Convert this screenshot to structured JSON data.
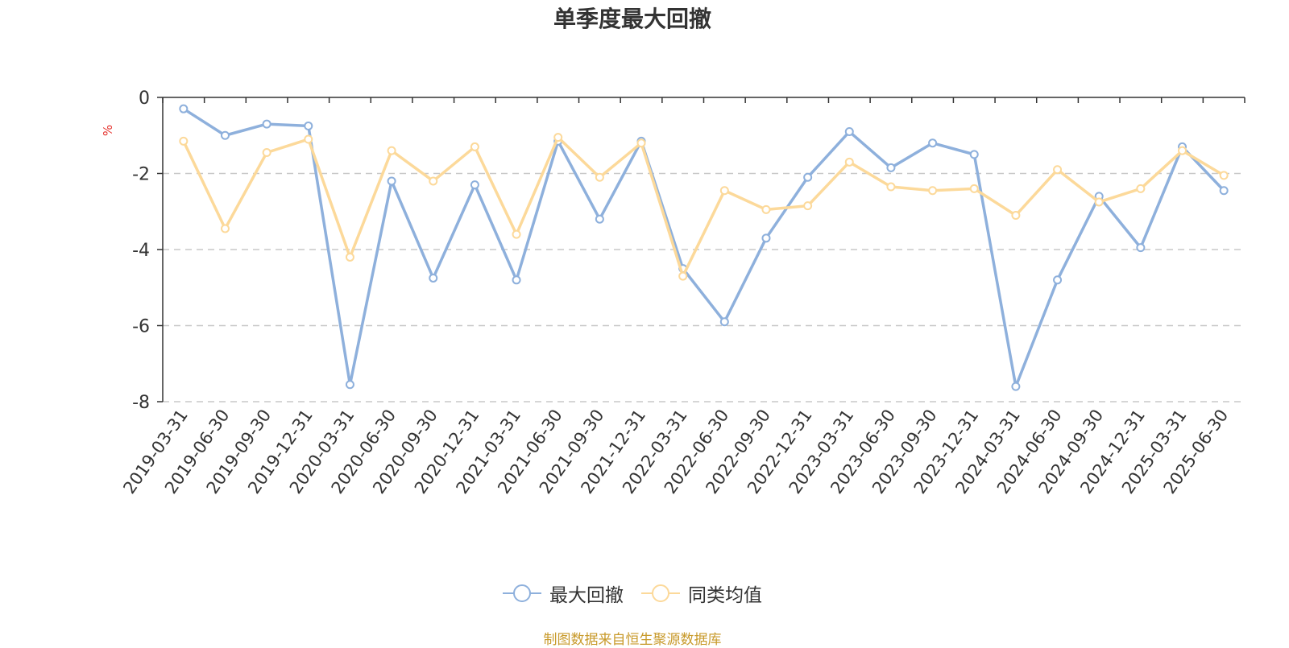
{
  "colors": {
    "series_max_drawdown": "#8eb0dc",
    "series_peer_avg": "#fcd99a",
    "ylabel_unit": "#e5322d",
    "source_note": "#c89a2b",
    "grid": "#c8c8c8",
    "axis": "#333333"
  },
  "chart_data": {
    "type": "line",
    "title": "单季度最大回撤",
    "ylabel": "%",
    "xlabel": "",
    "ylim": [
      -8,
      0
    ],
    "yticks": [
      "0",
      "-2",
      "-4",
      "-6",
      "-8"
    ],
    "grid": true,
    "legend_position": "bottom-center",
    "categories": [
      "2019-03-31",
      "2019-06-30",
      "2019-09-30",
      "2019-12-31",
      "2020-03-31",
      "2020-06-30",
      "2020-09-30",
      "2020-12-31",
      "2021-03-31",
      "2021-06-30",
      "2021-09-30",
      "2021-12-31",
      "2022-03-31",
      "2022-06-30",
      "2022-09-30",
      "2022-12-31",
      "2023-03-31",
      "2023-06-30",
      "2023-09-30",
      "2023-12-31",
      "2024-03-31",
      "2024-06-30",
      "2024-09-30",
      "2024-12-31",
      "2025-03-31",
      "2025-06-30"
    ],
    "series": [
      {
        "name": "最大回撤",
        "values": [
          -0.3,
          -1.0,
          -0.7,
          -0.75,
          -7.55,
          -2.2,
          -4.75,
          -2.3,
          -4.8,
          -1.15,
          -3.2,
          -1.15,
          -4.5,
          -5.9,
          -3.7,
          -2.1,
          -0.9,
          -1.85,
          -1.2,
          -1.5,
          -7.6,
          -4.8,
          -2.6,
          -3.95,
          -1.3,
          -2.45
        ]
      },
      {
        "name": "同类均值",
        "values": [
          -1.15,
          -3.45,
          -1.45,
          -1.1,
          -4.2,
          -1.4,
          -2.2,
          -1.3,
          -3.6,
          -1.05,
          -2.1,
          -1.2,
          -4.7,
          -2.45,
          -2.95,
          -2.85,
          -1.7,
          -2.35,
          -2.45,
          -2.4,
          -3.1,
          -1.9,
          -2.75,
          -2.4,
          -1.4,
          -2.05
        ]
      }
    ]
  },
  "legend": {
    "items": [
      {
        "label": "最大回撤"
      },
      {
        "label": "同类均值"
      }
    ]
  },
  "footer": {
    "source_note": "制图数据来自恒生聚源数据库"
  }
}
